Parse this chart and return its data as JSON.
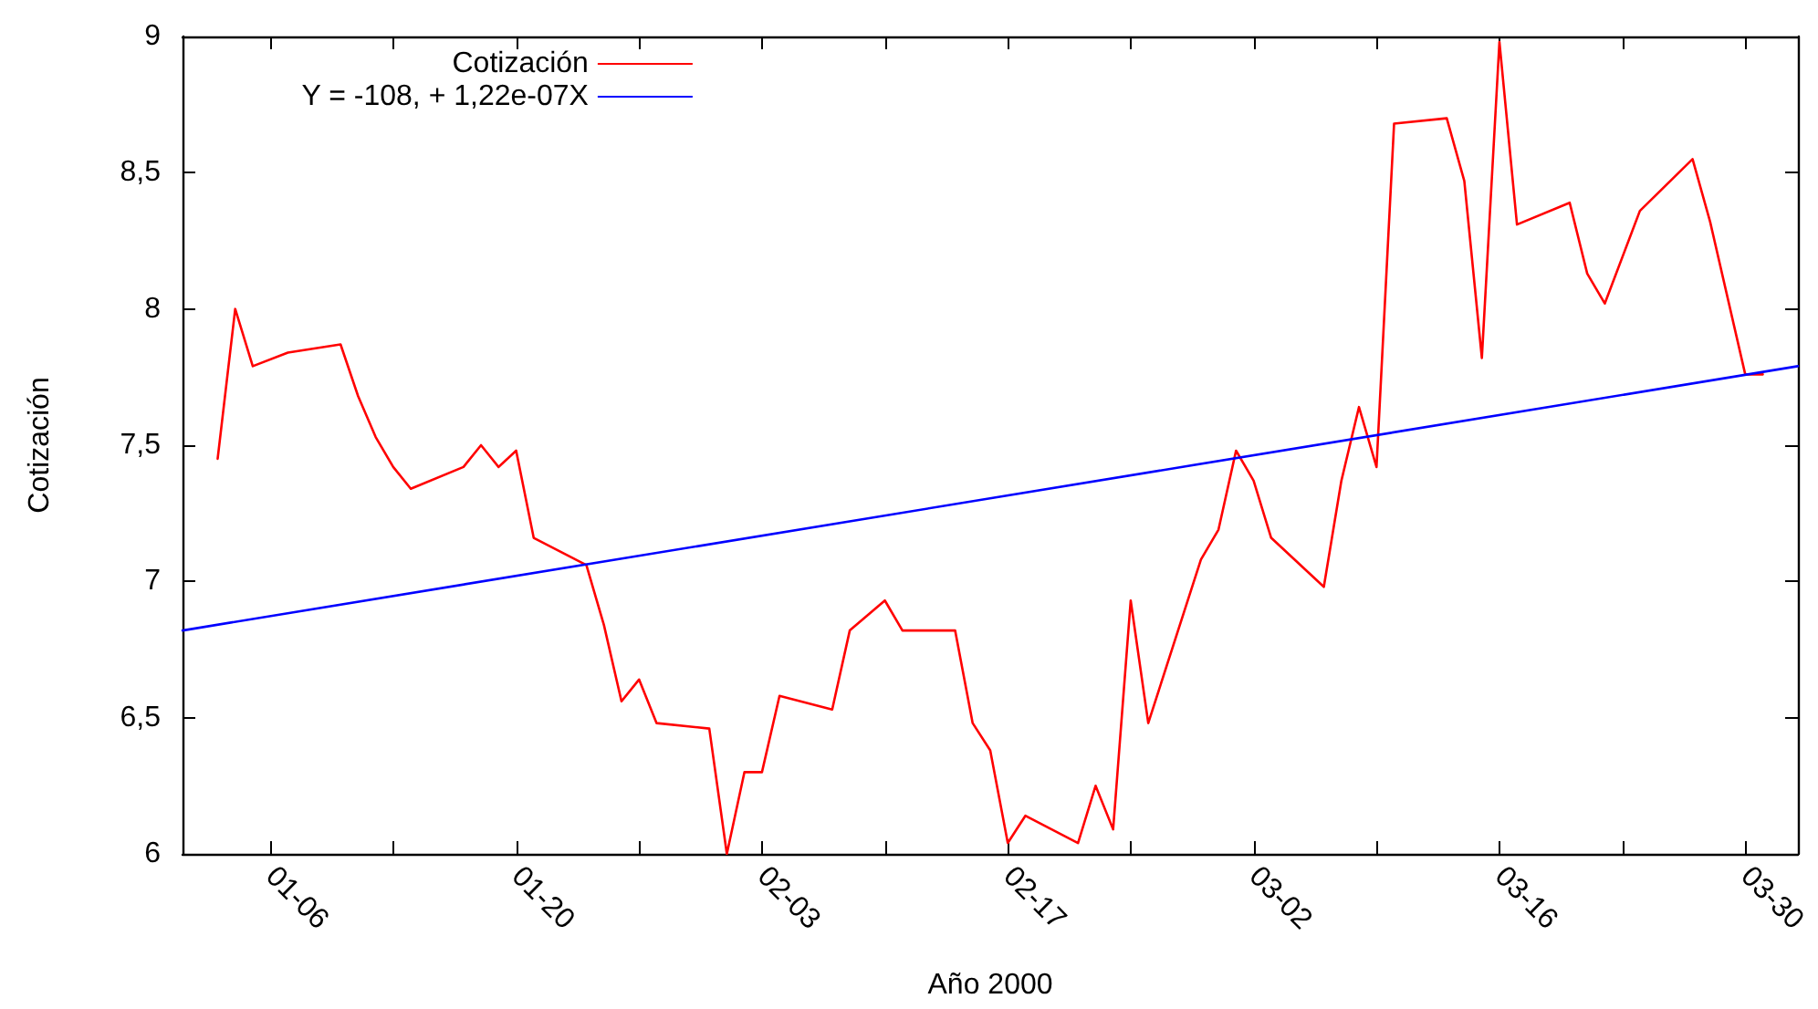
{
  "chart_data": {
    "type": "line",
    "xlabel": "Año 2000",
    "ylabel": "Cotización",
    "xlim": [
      "2000-01-01",
      "2000-04-02"
    ],
    "ylim": [
      6,
      9
    ],
    "xticks": [
      {
        "value": "2000-01-06",
        "label": "01-06"
      },
      {
        "value": "2000-01-13",
        "label": null
      },
      {
        "value": "2000-01-20",
        "label": "01-20"
      },
      {
        "value": "2000-01-27",
        "label": null
      },
      {
        "value": "2000-02-03",
        "label": "02-03"
      },
      {
        "value": "2000-02-10",
        "label": null
      },
      {
        "value": "2000-02-17",
        "label": "02-17"
      },
      {
        "value": "2000-02-24",
        "label": null
      },
      {
        "value": "2000-03-02",
        "label": "03-02"
      },
      {
        "value": "2000-03-09",
        "label": null
      },
      {
        "value": "2000-03-16",
        "label": "03-16"
      },
      {
        "value": "2000-03-23",
        "label": null
      },
      {
        "value": "2000-03-30",
        "label": "03-30"
      }
    ],
    "yticks": [
      6,
      {
        "value": 6.5,
        "label": "6,5"
      },
      7,
      {
        "value": 7.5,
        "label": "7,5"
      },
      8,
      {
        "value": 8.5,
        "label": "8,5"
      },
      9
    ],
    "grid": false,
    "legend": "top left",
    "marker": "none",
    "line_style": "solid",
    "series": [
      {
        "name": "Cotización",
        "color": "#ff0000",
        "x": [
          "2000-01-03",
          "2000-01-04",
          "2000-01-05",
          "2000-01-07",
          "2000-01-10",
          "2000-01-11",
          "2000-01-12",
          "2000-01-13",
          "2000-01-14",
          "2000-01-17",
          "2000-01-18",
          "2000-01-19",
          "2000-01-20",
          "2000-01-21",
          "2000-01-24",
          "2000-01-25",
          "2000-01-26",
          "2000-01-27",
          "2000-01-28",
          "2000-01-31",
          "2000-02-01",
          "2000-02-02",
          "2000-02-03",
          "2000-02-04",
          "2000-02-07",
          "2000-02-08",
          "2000-02-10",
          "2000-02-11",
          "2000-02-14",
          "2000-02-15",
          "2000-02-16",
          "2000-02-17",
          "2000-02-18",
          "2000-02-21",
          "2000-02-22",
          "2000-02-23",
          "2000-02-24",
          "2000-02-25",
          "2000-02-28",
          "2000-02-29",
          "2000-03-01",
          "2000-03-02",
          "2000-03-03",
          "2000-03-06",
          "2000-03-07",
          "2000-03-08",
          "2000-03-09",
          "2000-03-10",
          "2000-03-13",
          "2000-03-14",
          "2000-03-15",
          "2000-03-16",
          "2000-03-17",
          "2000-03-20",
          "2000-03-21",
          "2000-03-22",
          "2000-03-24",
          "2000-03-27",
          "2000-03-28",
          "2000-03-30",
          "2000-03-31"
        ],
        "values": [
          7.45,
          8.0,
          7.79,
          7.84,
          7.87,
          7.68,
          7.53,
          7.42,
          7.34,
          7.42,
          7.5,
          7.42,
          7.48,
          7.16,
          7.06,
          6.84,
          6.56,
          6.64,
          6.48,
          6.46,
          6.0,
          6.3,
          6.3,
          6.58,
          6.53,
          6.82,
          6.93,
          6.82,
          6.82,
          6.48,
          6.38,
          6.04,
          6.14,
          6.04,
          6.25,
          6.09,
          6.93,
          6.48,
          7.08,
          7.19,
          7.48,
          7.37,
          7.16,
          6.98,
          7.37,
          7.64,
          7.42,
          8.68,
          8.7,
          8.47,
          7.82,
          8.98,
          8.31,
          8.39,
          8.13,
          8.02,
          8.36,
          8.55,
          8.32,
          7.76,
          7.76
        ]
      },
      {
        "name": "Y = -108, + 1,22e-07X",
        "color": "#0000ff",
        "x": [
          "2000-01-01",
          "2000-04-02"
        ],
        "values": [
          6.82,
          7.79
        ]
      }
    ]
  }
}
